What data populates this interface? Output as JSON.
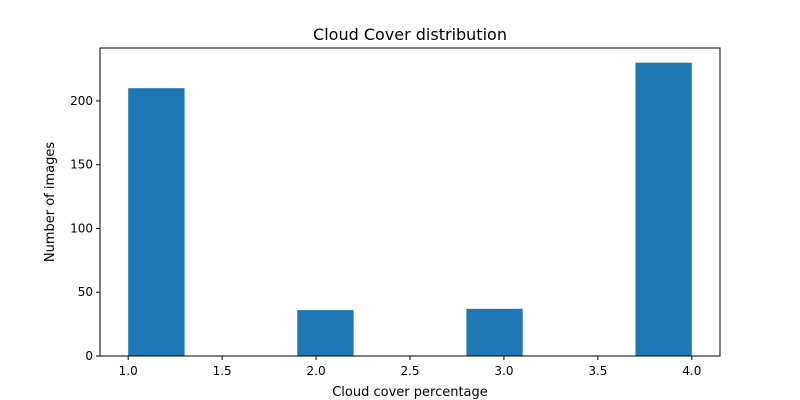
{
  "chart_data": {
    "type": "bar",
    "title": "Cloud Cover distribution",
    "xlabel": "Cloud cover percentage",
    "ylabel": "Number of images",
    "xlim": [
      0.85,
      4.15
    ],
    "ylim": [
      0,
      241.5
    ],
    "grid": false,
    "bar_color": "#1f77b4",
    "bins": [
      {
        "x0": 1.0,
        "x1": 1.3,
        "value": 210
      },
      {
        "x0": 1.3,
        "x1": 1.6,
        "value": 0
      },
      {
        "x0": 1.6,
        "x1": 1.9,
        "value": 0
      },
      {
        "x0": 1.9,
        "x1": 2.2,
        "value": 36
      },
      {
        "x0": 2.2,
        "x1": 2.5,
        "value": 0
      },
      {
        "x0": 2.5,
        "x1": 2.8,
        "value": 0
      },
      {
        "x0": 2.8,
        "x1": 3.1,
        "value": 37
      },
      {
        "x0": 3.1,
        "x1": 3.4,
        "value": 0
      },
      {
        "x0": 3.4,
        "x1": 3.7,
        "value": 0
      },
      {
        "x0": 3.7,
        "x1": 4.0,
        "value": 230
      }
    ],
    "x_ticks": [
      {
        "value": 1.0,
        "label": "1.0"
      },
      {
        "value": 1.5,
        "label": "1.5"
      },
      {
        "value": 2.0,
        "label": "2.0"
      },
      {
        "value": 2.5,
        "label": "2.5"
      },
      {
        "value": 3.0,
        "label": "3.0"
      },
      {
        "value": 3.5,
        "label": "3.5"
      },
      {
        "value": 4.0,
        "label": "4.0"
      }
    ],
    "y_ticks": [
      {
        "value": 0,
        "label": "0"
      },
      {
        "value": 50,
        "label": "50"
      },
      {
        "value": 100,
        "label": "100"
      },
      {
        "value": 150,
        "label": "150"
      },
      {
        "value": 200,
        "label": "200"
      }
    ]
  }
}
